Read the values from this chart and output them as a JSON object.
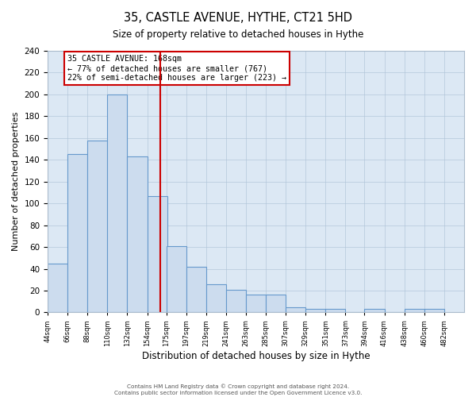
{
  "title": "35, CASTLE AVENUE, HYTHE, CT21 5HD",
  "subtitle": "Size of property relative to detached houses in Hythe",
  "xlabel": "Distribution of detached houses by size in Hythe",
  "ylabel": "Number of detached properties",
  "bin_edges": [
    44,
    66,
    88,
    110,
    132,
    154,
    175,
    197,
    219,
    241,
    263,
    285,
    307,
    329,
    351,
    373,
    394,
    416,
    438,
    460,
    482
  ],
  "bar_heights": [
    45,
    145,
    158,
    200,
    143,
    107,
    61,
    42,
    26,
    21,
    16,
    16,
    5,
    3,
    3,
    0,
    3,
    0,
    3,
    3
  ],
  "bar_fill_color": "#ccdcee",
  "bar_edge_color": "#6699cc",
  "background_color": "#dce8f4",
  "property_size": 168,
  "red_line_color": "#cc0000",
  "annotation_text": "35 CASTLE AVENUE: 168sqm\n← 77% of detached houses are smaller (767)\n22% of semi-detached houses are larger (223) →",
  "annotation_box_color": "#cc0000",
  "annotation_bg_color": "#ffffff",
  "ylim": [
    0,
    240
  ],
  "yticks": [
    0,
    20,
    40,
    60,
    80,
    100,
    120,
    140,
    160,
    180,
    200,
    220,
    240
  ],
  "footer_line1": "Contains HM Land Registry data © Crown copyright and database right 2024.",
  "footer_line2": "Contains public sector information licensed under the Open Government Licence v3.0."
}
